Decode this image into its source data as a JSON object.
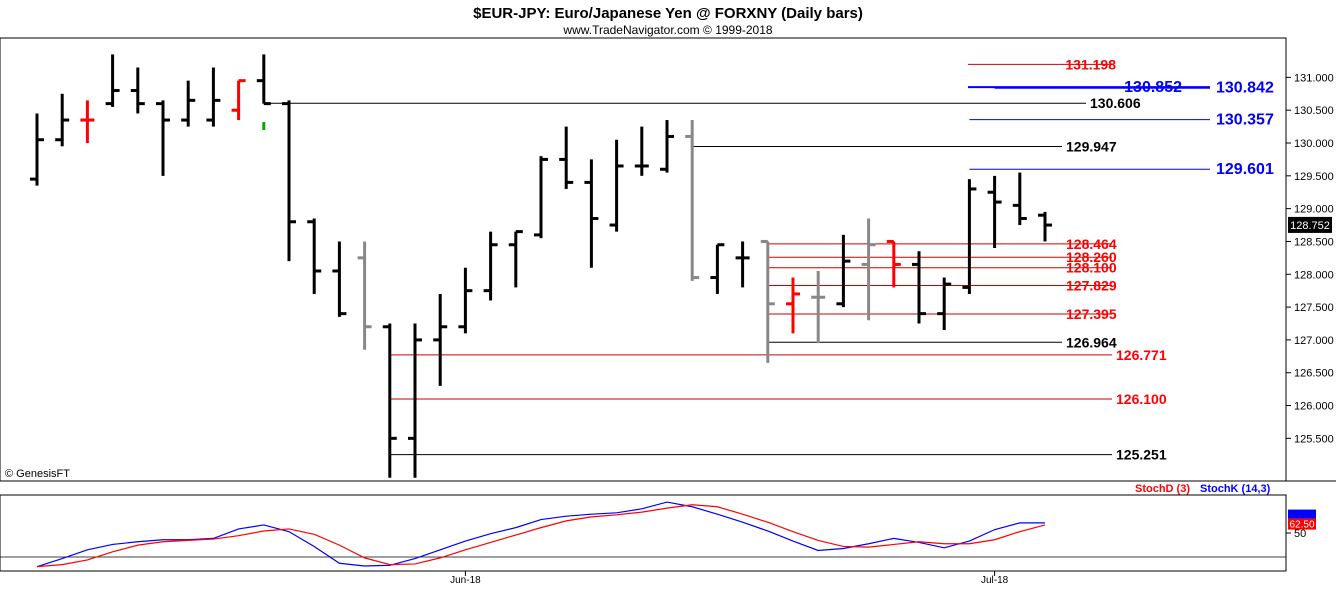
{
  "header": {
    "title": "$EUR-JPY:  Euro/Japanese Yen @ FORXNY  (Daily bars)",
    "subtitle": "www.TradeNavigator.com © 1999-2018",
    "copyright": "© GenesisFT"
  },
  "colors": {
    "black": "#000000",
    "red": "#ff0000",
    "blue": "#0000ff",
    "gray": "#888888",
    "dark_red_line": "#cc0000",
    "logo": "#d4a017"
  },
  "chart_data": [
    {
      "type": "ohlc",
      "ylim": [
        124.85,
        131.6
      ],
      "yticks": [
        125.5,
        126.0,
        126.5,
        127.0,
        127.5,
        128.0,
        128.5,
        129.0,
        129.5,
        130.0,
        130.5,
        131.0
      ],
      "ytick_labels": [
        "125.500",
        "126.000",
        "126.500",
        "127.000",
        "127.500",
        "128.000",
        "128.500",
        "129.000",
        "129.500",
        "130.000",
        "130.500",
        "131.000"
      ],
      "last_value_label": "128.752",
      "last_value": 128.752,
      "bars": [
        {
          "o": 129.45,
          "h": 130.45,
          "l": 129.35,
          "c": 130.05,
          "color": "black"
        },
        {
          "o": 130.05,
          "h": 130.75,
          "l": 129.95,
          "c": 130.35,
          "color": "black"
        },
        {
          "o": 130.35,
          "h": 130.65,
          "l": 130.0,
          "c": 130.35,
          "color": "red"
        },
        {
          "o": 130.6,
          "h": 131.35,
          "l": 130.55,
          "c": 130.8,
          "color": "black"
        },
        {
          "o": 130.8,
          "h": 131.15,
          "l": 130.45,
          "c": 130.6,
          "color": "black"
        },
        {
          "o": 130.6,
          "h": 130.65,
          "l": 129.5,
          "c": 130.35,
          "color": "black"
        },
        {
          "o": 130.35,
          "h": 130.95,
          "l": 130.25,
          "c": 130.65,
          "color": "black"
        },
        {
          "o": 130.35,
          "h": 131.15,
          "l": 130.25,
          "c": 130.65,
          "color": "black"
        },
        {
          "o": 130.5,
          "h": 130.95,
          "l": 130.35,
          "c": 130.95,
          "color": "red"
        },
        {
          "o": 130.95,
          "h": 131.35,
          "l": 130.6,
          "c": 130.6,
          "color": "black"
        },
        {
          "o": 130.6,
          "h": 130.65,
          "l": 128.2,
          "c": 128.8,
          "color": "black"
        },
        {
          "o": 128.8,
          "h": 128.85,
          "l": 127.7,
          "c": 128.05,
          "color": "black"
        },
        {
          "o": 128.05,
          "h": 128.5,
          "l": 127.35,
          "c": 127.4,
          "color": "black"
        },
        {
          "o": 128.25,
          "h": 128.5,
          "l": 126.85,
          "c": 127.2,
          "color": "gray"
        },
        {
          "o": 127.2,
          "h": 127.25,
          "l": 124.9,
          "c": 125.5,
          "color": "black"
        },
        {
          "o": 125.5,
          "h": 127.25,
          "l": 124.9,
          "c": 127.0,
          "color": "black"
        },
        {
          "o": 127.0,
          "h": 127.7,
          "l": 126.3,
          "c": 127.2,
          "color": "black"
        },
        {
          "o": 127.2,
          "h": 128.1,
          "l": 127.1,
          "c": 127.75,
          "color": "black"
        },
        {
          "o": 127.75,
          "h": 128.65,
          "l": 127.6,
          "c": 128.45,
          "color": "black"
        },
        {
          "o": 128.45,
          "h": 128.65,
          "l": 127.8,
          "c": 128.65,
          "color": "black"
        },
        {
          "o": 128.6,
          "h": 129.8,
          "l": 128.55,
          "c": 129.75,
          "color": "black"
        },
        {
          "o": 129.75,
          "h": 130.25,
          "l": 129.3,
          "c": 129.4,
          "color": "black"
        },
        {
          "o": 129.4,
          "h": 129.75,
          "l": 128.1,
          "c": 128.85,
          "color": "black"
        },
        {
          "o": 128.75,
          "h": 130.05,
          "l": 128.65,
          "c": 129.65,
          "color": "black"
        },
        {
          "o": 129.65,
          "h": 130.25,
          "l": 129.5,
          "c": 129.65,
          "color": "black"
        },
        {
          "o": 129.6,
          "h": 130.35,
          "l": 129.55,
          "c": 130.1,
          "color": "black"
        },
        {
          "o": 130.1,
          "h": 130.35,
          "l": 127.9,
          "c": 127.95,
          "color": "gray"
        },
        {
          "o": 127.95,
          "h": 128.45,
          "l": 127.7,
          "c": 128.45,
          "color": "black"
        },
        {
          "o": 128.25,
          "h": 128.5,
          "l": 127.8,
          "c": 128.25,
          "color": "black"
        },
        {
          "o": 128.5,
          "h": 128.5,
          "l": 126.65,
          "c": 127.55,
          "color": "gray"
        },
        {
          "o": 127.55,
          "h": 127.95,
          "l": 127.1,
          "c": 127.7,
          "color": "red"
        },
        {
          "o": 127.65,
          "h": 128.05,
          "l": 126.95,
          "c": 127.65,
          "color": "gray"
        },
        {
          "o": 127.55,
          "h": 128.6,
          "l": 127.5,
          "c": 128.2,
          "color": "black"
        },
        {
          "o": 128.15,
          "h": 128.85,
          "l": 127.3,
          "c": 128.45,
          "color": "gray"
        },
        {
          "o": 128.5,
          "h": 128.5,
          "l": 127.8,
          "c": 128.15,
          "color": "red"
        },
        {
          "o": 128.15,
          "h": 128.35,
          "l": 127.25,
          "c": 127.4,
          "color": "black"
        },
        {
          "o": 127.4,
          "h": 127.95,
          "l": 127.15,
          "c": 127.85,
          "color": "black"
        },
        {
          "o": 127.8,
          "h": 129.45,
          "l": 127.7,
          "c": 129.3,
          "color": "black"
        },
        {
          "o": 129.25,
          "h": 129.5,
          "l": 128.4,
          "c": 129.1,
          "color": "black"
        },
        {
          "o": 129.05,
          "h": 129.55,
          "l": 128.75,
          "c": 128.85,
          "color": "black"
        },
        {
          "o": 128.9,
          "h": 128.95,
          "l": 128.5,
          "c": 128.75,
          "color": "black"
        }
      ],
      "markers": [
        {
          "bar": 9,
          "value": 130.35,
          "color": "#00aa00"
        }
      ],
      "levels": [
        {
          "value": 131.198,
          "label": "131.198",
          "line_color": "#cc0000",
          "label_color": "#ff0000",
          "start_bar": -1,
          "label_side": "left"
        },
        {
          "value": 130.852,
          "label": "130.852",
          "line_color": "#0000ff",
          "label_color": "#0000ff",
          "start_bar": 38,
          "label_side": "left"
        },
        {
          "value": 130.842,
          "label": "130.842",
          "line_color": "#0000ff",
          "label_color": "#0000ff",
          "start_bar": 38,
          "label_side": "right"
        },
        {
          "value": 130.606,
          "label": "130.606",
          "line_color": "#000000",
          "label_color": "#000000",
          "start_bar": 9,
          "label_side": "right"
        },
        {
          "value": 130.357,
          "label": "130.357",
          "line_color": "#0000ff",
          "label_color": "#0000ff",
          "start_bar": 37,
          "label_side": "right"
        },
        {
          "value": 129.947,
          "label": "129.947",
          "line_color": "#000000",
          "label_color": "#000000",
          "start_bar": 26,
          "label_side": "right"
        },
        {
          "value": 129.601,
          "label": "129.601",
          "line_color": "#0000ff",
          "label_color": "#0000ff",
          "start_bar": 37,
          "label_side": "right"
        },
        {
          "value": 128.464,
          "label": "128.464",
          "line_color": "#cc0000",
          "label_color": "#ff0000",
          "start_bar": 29,
          "label_side": "right"
        },
        {
          "value": 128.26,
          "label": "128.260",
          "line_color": "#cc0000",
          "label_color": "#ff0000",
          "start_bar": 29,
          "label_side": "right"
        },
        {
          "value": 128.1,
          "label": "128.100",
          "line_color": "#cc0000",
          "label_color": "#ff0000",
          "start_bar": 29,
          "label_side": "right"
        },
        {
          "value": 127.829,
          "label": "127.829",
          "line_color": "#cc0000",
          "label_color": "#ff0000",
          "start_bar": 29,
          "label_side": "right"
        },
        {
          "value": 127.395,
          "label": "127.395",
          "line_color": "#cc0000",
          "label_color": "#ff0000",
          "start_bar": 29,
          "label_side": "right"
        },
        {
          "value": 126.964,
          "label": "126.964",
          "line_color": "#000000",
          "label_color": "#000000",
          "start_bar": 29,
          "label_side": "right"
        },
        {
          "value": 126.771,
          "label": "126.771",
          "line_color": "#cc0000",
          "label_color": "#ff0000",
          "start_bar": 14,
          "label_side": "right"
        },
        {
          "value": 126.1,
          "label": "126.100",
          "line_color": "#cc0000",
          "label_color": "#ff0000",
          "start_bar": 14,
          "label_side": "right"
        },
        {
          "value": 125.251,
          "label": "125.251",
          "line_color": "#000000",
          "label_color": "#000000",
          "start_bar": 14,
          "label_side": "right"
        }
      ]
    },
    {
      "type": "line",
      "ylim": [
        -5,
        105
      ],
      "yticks": [
        50
      ],
      "ytick_labels": [
        "50"
      ],
      "last_value_label": "62.50",
      "last_value": 62.5,
      "legend": [
        {
          "name": "StochD (3)",
          "color": "#ff0000"
        },
        {
          "name": "StochK (14,3)",
          "color": "#0000ff"
        }
      ],
      "series": [
        {
          "name": "StochK (14,3)",
          "color": "#0000ff",
          "values": [
            0,
            12,
            25,
            33,
            37,
            40,
            40,
            42,
            56,
            62,
            52,
            30,
            5,
            1,
            2,
            12,
            25,
            38,
            49,
            58,
            70,
            75,
            78,
            80,
            86,
            96,
            89,
            78,
            66,
            53,
            38,
            24,
            27,
            34,
            42,
            36,
            28,
            38,
            55,
            65,
            65
          ]
        },
        {
          "name": "StochD (3)",
          "color": "#ff0000",
          "values": [
            0,
            3,
            10,
            22,
            32,
            37,
            39,
            41,
            46,
            53,
            56,
            48,
            32,
            13,
            3,
            4,
            13,
            25,
            36,
            47,
            58,
            68,
            74,
            77,
            81,
            87,
            92,
            89,
            78,
            66,
            52,
            39,
            30,
            29,
            33,
            37,
            34,
            34,
            40,
            52,
            62
          ]
        }
      ],
      "xticks": [
        {
          "bar": 17,
          "label": "Jun-18"
        },
        {
          "bar": 38,
          "label": "Jul-18"
        }
      ]
    }
  ]
}
